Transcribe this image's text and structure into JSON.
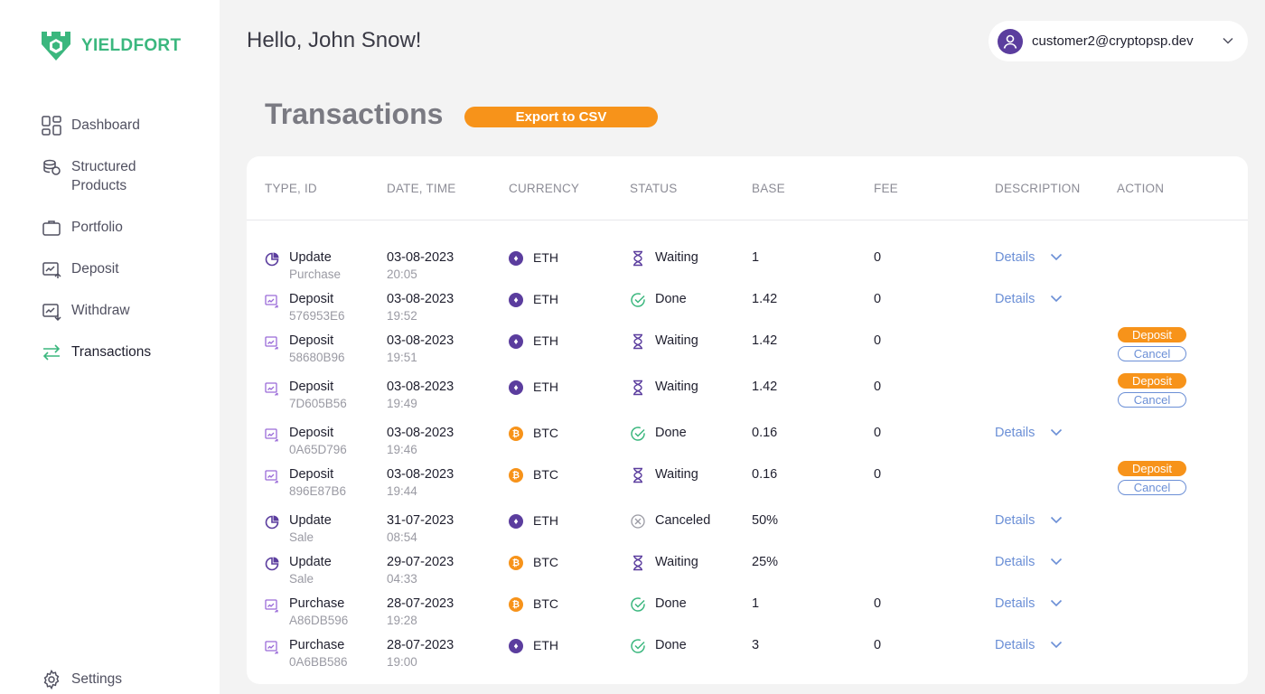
{
  "brand": {
    "name": "YIELDFORT",
    "color": "#3bb77e"
  },
  "sidebar": {
    "items": [
      {
        "label": "Dashboard",
        "icon": "dashboard-icon"
      },
      {
        "label": "Structured Products",
        "icon": "coins-stack-icon"
      },
      {
        "label": "Portfolio",
        "icon": "briefcase-icon"
      },
      {
        "label": "Deposit",
        "icon": "deposit-icon"
      },
      {
        "label": "Withdraw",
        "icon": "withdraw-icon"
      },
      {
        "label": "Transactions",
        "icon": "transfer-arrows-icon",
        "active": true
      }
    ],
    "settings_label": "Settings"
  },
  "header": {
    "greeting": "Hello, John Snow!",
    "user_email": "customer2@cryptopsp.dev"
  },
  "page": {
    "title": "Transactions",
    "export_label": "Export to CSV",
    "accent": "#f7931a"
  },
  "table": {
    "columns": [
      "TYPE, ID",
      "DATE, TIME",
      "CURRENCY",
      "STATUS",
      "BASE",
      "FEE",
      "DESCRIPTION",
      "ACTION"
    ],
    "details_label": "Details",
    "deposit_action_label": "Deposit",
    "cancel_action_label": "Cancel",
    "rows": [
      {
        "type": "Update",
        "id": "Purchase",
        "date": "03-08-2023",
        "time": "20:05",
        "currency": "ETH",
        "status": "Waiting",
        "base": "1",
        "fee": "0",
        "details": true,
        "actions": false
      },
      {
        "type": "Deposit",
        "id": "576953E6",
        "date": "03-08-2023",
        "time": "19:52",
        "currency": "ETH",
        "status": "Done",
        "base": "1.42",
        "fee": "0",
        "details": true,
        "actions": false
      },
      {
        "type": "Deposit",
        "id": "58680B96",
        "date": "03-08-2023",
        "time": "19:51",
        "currency": "ETH",
        "status": "Waiting",
        "base": "1.42",
        "fee": "0",
        "details": false,
        "actions": true
      },
      {
        "type": "Deposit",
        "id": "7D605B56",
        "date": "03-08-2023",
        "time": "19:49",
        "currency": "ETH",
        "status": "Waiting",
        "base": "1.42",
        "fee": "0",
        "details": false,
        "actions": true
      },
      {
        "type": "Deposit",
        "id": "0A65D796",
        "date": "03-08-2023",
        "time": "19:46",
        "currency": "BTC",
        "status": "Done",
        "base": "0.16",
        "fee": "0",
        "details": true,
        "actions": false
      },
      {
        "type": "Deposit",
        "id": "896E87B6",
        "date": "03-08-2023",
        "time": "19:44",
        "currency": "BTC",
        "status": "Waiting",
        "base": "0.16",
        "fee": "0",
        "details": false,
        "actions": true
      },
      {
        "type": "Update",
        "id": "Sale",
        "date": "31-07-2023",
        "time": "08:54",
        "currency": "ETH",
        "status": "Canceled",
        "base": "50%",
        "fee": "",
        "details": true,
        "actions": false
      },
      {
        "type": "Update",
        "id": "Sale",
        "date": "29-07-2023",
        "time": "04:33",
        "currency": "BTC",
        "status": "Waiting",
        "base": "25%",
        "fee": "",
        "details": true,
        "actions": false
      },
      {
        "type": "Purchase",
        "id": "A86DB596",
        "date": "28-07-2023",
        "time": "19:28",
        "currency": "BTC",
        "status": "Done",
        "base": "1",
        "fee": "0",
        "details": true,
        "actions": false
      },
      {
        "type": "Purchase",
        "id": "0A6BB586",
        "date": "28-07-2023",
        "time": "19:00",
        "currency": "ETH",
        "status": "Done",
        "base": "3",
        "fee": "0",
        "details": true,
        "actions": false
      }
    ]
  }
}
